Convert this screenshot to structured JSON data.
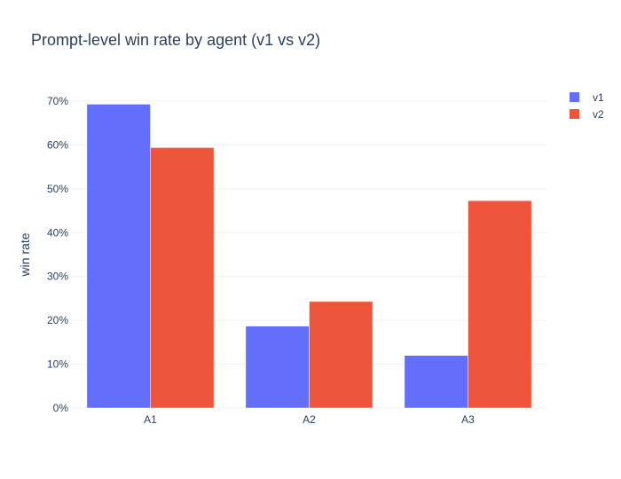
{
  "chart_data": {
    "type": "bar",
    "title": "Prompt-level win rate by agent (v1 vs v2)",
    "xlabel": "",
    "ylabel": "win rate",
    "categories": [
      "A1",
      "A2",
      "A3"
    ],
    "series": [
      {
        "name": "v1",
        "color": "#636efa",
        "values": [
          69.3,
          18.7,
          12.0
        ]
      },
      {
        "name": "v2",
        "color": "#ef553b",
        "values": [
          59.4,
          24.3,
          47.3
        ]
      }
    ],
    "ylim": [
      0,
      70
    ],
    "yticks": [
      0,
      10,
      20,
      30,
      40,
      50,
      60,
      70
    ],
    "ytick_labels": [
      "0%",
      "10%",
      "20%",
      "30%",
      "40%",
      "50%",
      "60%",
      "70%"
    ],
    "grid": true,
    "legend_position": "top-right"
  }
}
